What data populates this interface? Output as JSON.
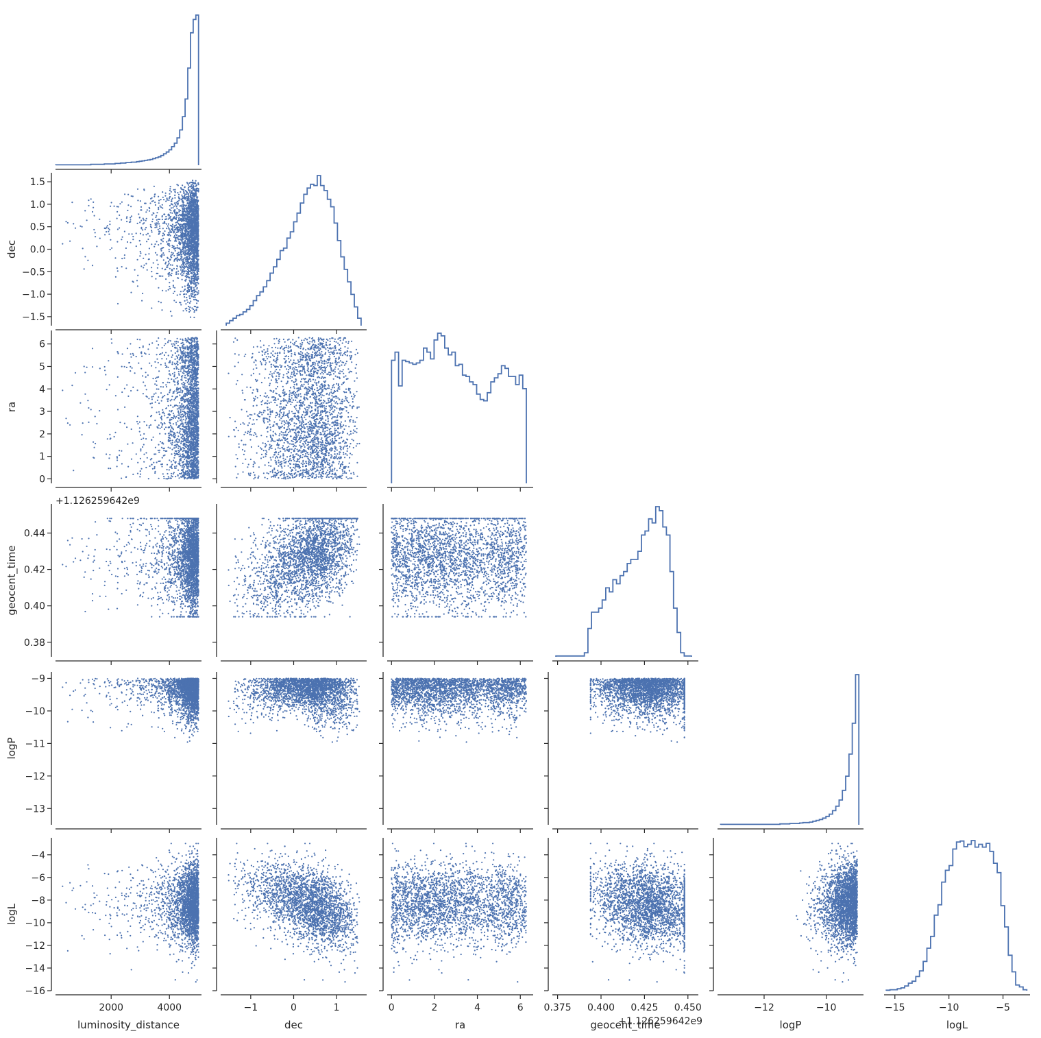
{
  "colors": {
    "series": "#4c72b0",
    "axis": "#262626",
    "background": "#ffffff"
  },
  "chart_data": {
    "type": "corner",
    "description_type": "pair plot: step histograms on diagonal, scatter below",
    "variables": [
      {
        "name": "luminosity_distance",
        "label": "luminosity_distance",
        "range": [
          90,
          5100
        ],
        "ticks": [
          2000,
          4000
        ],
        "tick_labels": [
          "2000",
          "4000"
        ]
      },
      {
        "name": "dec",
        "label": "dec",
        "range": [
          -1.7,
          1.7
        ],
        "ticks": [
          -1.5,
          -1.0,
          -0.5,
          0.0,
          0.5,
          1.0,
          1.5
        ],
        "tick_labels": [
          "−1.5",
          "−1.0",
          "−0.5",
          "0.0",
          "0.5",
          "1.0",
          "1.5"
        ],
        "x_ticks": [
          -1,
          0,
          1
        ],
        "x_tick_labels": [
          "−1",
          "0",
          "1"
        ]
      },
      {
        "name": "ra",
        "label": "ra",
        "range": [
          -0.2,
          6.6
        ],
        "ticks": [
          0,
          1,
          2,
          3,
          4,
          5,
          6
        ],
        "tick_labels": [
          "0",
          "1",
          "2",
          "3",
          "4",
          "5",
          "6"
        ],
        "x_ticks": [
          0,
          2,
          4,
          6
        ],
        "x_tick_labels": [
          "0",
          "2",
          "4",
          "6"
        ]
      },
      {
        "name": "geocent_time",
        "label": "geocent_time",
        "range": [
          0.372,
          0.456
        ],
        "ticks": [
          0.38,
          0.4,
          0.42,
          0.44
        ],
        "tick_labels": [
          "0.38",
          "0.40",
          "0.42",
          "0.44"
        ],
        "x_ticks": [
          0.375,
          0.4,
          0.425,
          0.45
        ],
        "x_tick_labels": [
          "0.375",
          "0.400",
          "0.425",
          "0.450"
        ],
        "offset": "+1.126259642e9"
      },
      {
        "name": "logP",
        "label": "logP",
        "range": [
          -13.5,
          -8.8
        ],
        "ticks": [
          -13,
          -12,
          -11,
          -10,
          -9
        ],
        "tick_labels": [
          "−13",
          "−12",
          "−11",
          "−10",
          "−9"
        ],
        "x_ticks": [
          -12,
          -10
        ],
        "x_tick_labels": [
          "−12",
          "−10"
        ]
      },
      {
        "name": "logL",
        "label": "logL",
        "range": [
          -16,
          -2.5
        ],
        "ticks": [
          -16,
          -14,
          -12,
          -10,
          -8,
          -6,
          -4
        ],
        "tick_labels": [
          "−16",
          "−14",
          "−12",
          "−10",
          "−8",
          "−6",
          "−4"
        ],
        "x_ticks": [
          -15,
          -10,
          -5
        ],
        "x_tick_labels": [
          "−15",
          "−10",
          "−5"
        ]
      }
    ],
    "histograms": [
      {
        "variable": "luminosity_distance",
        "edges_range": [
          100,
          5000
        ],
        "counts": [
          1,
          1,
          1,
          1,
          1,
          1,
          1,
          1,
          1,
          1,
          1,
          1,
          1,
          2,
          2,
          2,
          2,
          2,
          3,
          3,
          3,
          3,
          4,
          4,
          5,
          5,
          6,
          6,
          7,
          7,
          8,
          9,
          10,
          11,
          12,
          13,
          15,
          17,
          19,
          22,
          26,
          30,
          35,
          42,
          50,
          62,
          80,
          110,
          150,
          220,
          300,
          330,
          340
        ]
      },
      {
        "variable": "dec",
        "edges_range": [
          -1.57,
          1.57
        ],
        "counts": [
          2,
          4,
          6,
          8,
          9,
          11,
          13,
          16,
          20,
          24,
          27,
          31,
          36,
          42,
          47,
          53,
          60,
          62,
          70,
          75,
          83,
          90,
          98,
          105,
          110,
          113,
          112,
          120,
          112,
          108,
          101,
          95,
          82,
          68,
          55,
          45,
          35,
          25,
          15,
          6
        ]
      },
      {
        "variable": "ra",
        "edges_range": [
          0,
          6.28
        ],
        "counts": [
          91,
          97,
          72,
          91,
          90,
          89,
          88,
          89,
          91,
          100,
          97,
          92,
          106,
          111,
          109,
          100,
          95,
          97,
          87,
          88,
          80,
          79,
          75,
          73,
          66,
          62,
          61,
          67,
          75,
          78,
          81,
          87,
          85,
          79,
          79,
          73,
          80,
          70
        ]
      },
      {
        "variable": "geocent_time",
        "edges_range": [
          0.374,
          0.452
        ],
        "counts": [
          1,
          1,
          1,
          1,
          1,
          1,
          1,
          1,
          5,
          35,
          55,
          55,
          60,
          70,
          85,
          80,
          95,
          90,
          100,
          105,
          115,
          120,
          120,
          130,
          150,
          155,
          170,
          165,
          185,
          180,
          160,
          150,
          105,
          60,
          30,
          5,
          1,
          1
        ]
      },
      {
        "variable": "logP",
        "edges_range": [
          -13.4,
          -8.95
        ],
        "counts": [
          1,
          1,
          1,
          1,
          1,
          1,
          1,
          1,
          1,
          1,
          1,
          1,
          1,
          1,
          1,
          1,
          1,
          1,
          2,
          2,
          2,
          3,
          3,
          3,
          4,
          5,
          5,
          6,
          8,
          10,
          12,
          15,
          19,
          24,
          32,
          42,
          56,
          78,
          110,
          160,
          230,
          340
        ]
      },
      {
        "variable": "logL",
        "edges_range": [
          -15.8,
          -2.8
        ],
        "counts": [
          1,
          2,
          2,
          4,
          6,
          10,
          16,
          20,
          30,
          42,
          62,
          90,
          115,
          160,
          182,
          230,
          255,
          265,
          300,
          315,
          317,
          305,
          310,
          318,
          304,
          310,
          304,
          312,
          295,
          270,
          250,
          180,
          135,
          75,
          40,
          12,
          8,
          2
        ]
      }
    ]
  }
}
